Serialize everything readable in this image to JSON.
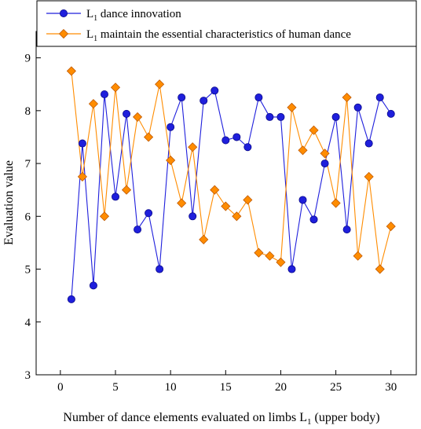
{
  "chart_data": {
    "type": "line",
    "xlabel": "Number of dance elements evaluated on limbs L",
    "xlabel_sub": "1",
    "xlabel_suffix": " (upper body)",
    "ylabel": "Evaluation value",
    "xlim": [
      -2.2,
      32.3
    ],
    "ylim": [
      3,
      9.5
    ],
    "xticks": [
      0,
      5,
      10,
      15,
      20,
      25,
      30
    ],
    "yticks": [
      3,
      4,
      5,
      6,
      7,
      8,
      9
    ],
    "legend_position": "top-left",
    "series": [
      {
        "name_main": "L",
        "name_sub": "1",
        "name_rest": " dance innovation",
        "color": "#1f1fdc",
        "marker": "circle",
        "x": [
          1,
          2,
          3,
          4,
          5,
          6,
          7,
          8,
          9,
          10,
          11,
          12,
          13,
          14,
          15,
          16,
          17,
          18,
          19,
          20,
          21,
          22,
          23,
          24,
          25,
          26,
          27,
          28,
          29,
          30
        ],
        "values": [
          4.43,
          7.38,
          4.69,
          8.31,
          6.37,
          7.94,
          5.75,
          6.06,
          5.0,
          7.69,
          8.25,
          6.0,
          8.19,
          8.38,
          7.44,
          7.5,
          7.31,
          8.25,
          7.88,
          7.88,
          5.0,
          6.31,
          5.94,
          7.0,
          7.88,
          5.75,
          8.06,
          7.38,
          8.25,
          7.94
        ]
      },
      {
        "name_main": "L",
        "name_sub": "1",
        "name_rest": " maintain the essential characteristics of human dance",
        "color": "#ff8c00",
        "marker": "diamond",
        "x": [
          1,
          2,
          3,
          4,
          5,
          6,
          7,
          8,
          9,
          10,
          11,
          12,
          13,
          14,
          15,
          16,
          17,
          18,
          19,
          20,
          21,
          22,
          23,
          24,
          25,
          26,
          27,
          28,
          29,
          30
        ],
        "values": [
          8.75,
          6.75,
          8.13,
          6.0,
          8.44,
          6.5,
          7.88,
          7.5,
          8.5,
          7.06,
          6.25,
          7.31,
          5.56,
          6.5,
          6.19,
          6.0,
          6.31,
          5.31,
          5.25,
          5.13,
          8.06,
          7.25,
          7.63,
          7.19,
          6.25,
          8.25,
          5.25,
          6.75,
          5.0,
          5.81
        ]
      }
    ]
  }
}
